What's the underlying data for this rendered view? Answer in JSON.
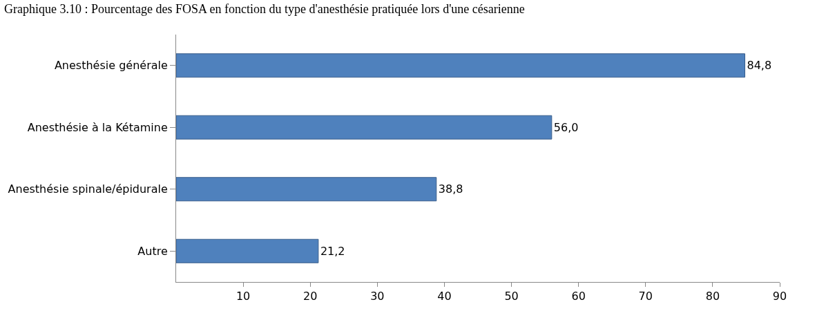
{
  "chart_data": {
    "type": "bar",
    "orientation": "horizontal",
    "title": "Graphique 3.10 : Pourcentage des FOSA en fonction du type d'anesthésie pratiquée lors d'une césarienne",
    "categories": [
      "Anesthésie générale",
      "Anesthésie à la Kétamine",
      "Anesthésie spinale/épidurale",
      "Autre"
    ],
    "values": [
      84.8,
      56.0,
      38.8,
      21.2
    ],
    "value_labels": [
      "84,8",
      "56,0",
      "38,8",
      "21,2"
    ],
    "color": "#4f81bd",
    "xlim": [
      0,
      90
    ],
    "xticks": [
      10,
      20,
      30,
      40,
      50,
      60,
      70,
      80,
      90
    ],
    "legend": false
  }
}
